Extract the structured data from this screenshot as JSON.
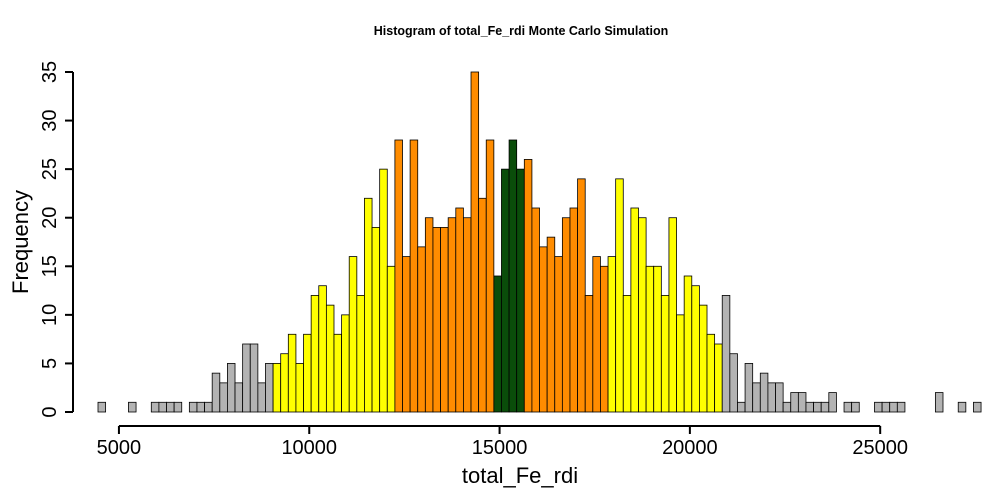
{
  "chart_data": {
    "type": "bar",
    "title": "Histogram of  total_Fe_rdi  Monte Carlo Simulation",
    "xlabel": "total_Fe_rdi",
    "ylabel": "Frequency",
    "xlim": [
      4450,
      26650
    ],
    "ylim": [
      0,
      35
    ],
    "bin_start": 4450,
    "bin_width": 200,
    "x_ticks": [
      5000,
      10000,
      15000,
      20000,
      25000
    ],
    "x_tick_labels": [
      "5000",
      "10000",
      "15000",
      "20000",
      "25000"
    ],
    "y_ticks": [
      0,
      5,
      10,
      15,
      20,
      25,
      30,
      35
    ],
    "y_tick_labels": [
      "0",
      "5",
      "10",
      "15",
      "20",
      "25",
      "30",
      "35"
    ],
    "grid": false,
    "legend": "none",
    "colors": {
      "gray": "#b3b3b3",
      "yellow": "#ffff00",
      "orange": "#ff8c00",
      "green": "#0a4d0a"
    },
    "counts": [
      1,
      0,
      0,
      0,
      1,
      0,
      0,
      1,
      1,
      1,
      1,
      0,
      1,
      1,
      1,
      4,
      3,
      5,
      3,
      7,
      7,
      3,
      5,
      5,
      6,
      8,
      5,
      8,
      12,
      13,
      11,
      8,
      10,
      16,
      12,
      22,
      19,
      25,
      15,
      28,
      16,
      28,
      17,
      20,
      19,
      19,
      20,
      21,
      20,
      35,
      22,
      28,
      14,
      25,
      28,
      25,
      26,
      21,
      17,
      18,
      16,
      20,
      21,
      24,
      12,
      16,
      15,
      16,
      24,
      12,
      21,
      20,
      15,
      15,
      12,
      20,
      10,
      14,
      13,
      11,
      8,
      7,
      12,
      6,
      1,
      5,
      3,
      4,
      3,
      3,
      1,
      2,
      2,
      1,
      1,
      1,
      2,
      0,
      1,
      1,
      0,
      0,
      1,
      1,
      1,
      1,
      0,
      0,
      0,
      0,
      2,
      0,
      0,
      1,
      0,
      1
    ],
    "bar_colors": [
      "gray",
      "gray",
      "gray",
      "gray",
      "gray",
      "gray",
      "gray",
      "gray",
      "gray",
      "gray",
      "gray",
      "gray",
      "gray",
      "gray",
      "gray",
      "gray",
      "gray",
      "gray",
      "gray",
      "gray",
      "gray",
      "gray",
      "gray",
      "yellow",
      "yellow",
      "yellow",
      "yellow",
      "yellow",
      "yellow",
      "yellow",
      "yellow",
      "yellow",
      "yellow",
      "yellow",
      "yellow",
      "yellow",
      "yellow",
      "yellow",
      "yellow",
      "orange",
      "orange",
      "orange",
      "orange",
      "orange",
      "orange",
      "orange",
      "orange",
      "orange",
      "orange",
      "orange",
      "orange",
      "orange",
      "green",
      "green",
      "green",
      "green",
      "orange",
      "orange",
      "orange",
      "orange",
      "orange",
      "orange",
      "orange",
      "orange",
      "orange",
      "orange",
      "orange",
      "yellow",
      "yellow",
      "yellow",
      "yellow",
      "yellow",
      "yellow",
      "yellow",
      "yellow",
      "yellow",
      "yellow",
      "yellow",
      "yellow",
      "yellow",
      "yellow",
      "yellow",
      "gray",
      "gray",
      "gray",
      "gray",
      "gray",
      "gray",
      "gray",
      "gray",
      "gray",
      "gray",
      "gray",
      "gray",
      "gray",
      "gray",
      "gray",
      "gray",
      "gray",
      "gray",
      "gray",
      "gray",
      "gray",
      "gray",
      "gray",
      "gray",
      "gray",
      "gray",
      "gray",
      "gray",
      "gray",
      "gray",
      "gray",
      "gray",
      "gray",
      "gray"
    ]
  }
}
